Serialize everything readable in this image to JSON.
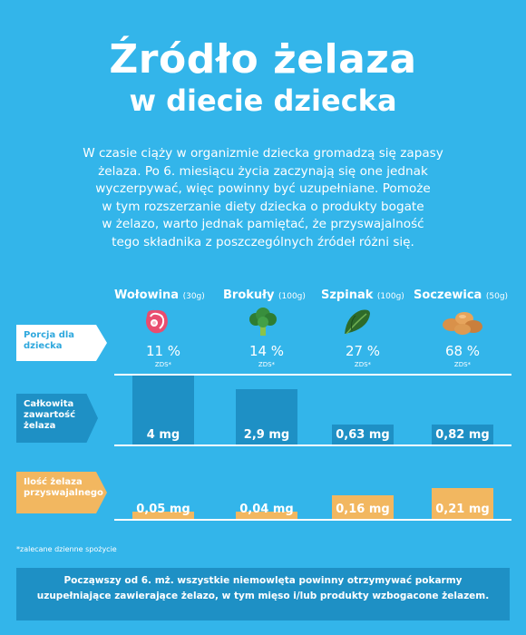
{
  "title_line1": "Źródło żelaza",
  "title_line2": "w diecie dziecka",
  "intro_lines": [
    "W czasie ciąży w organizmie dziecka gromadzą się zapasy",
    "żelaza. Po 6. miesiącu życia zaczynają się one jednak",
    "wyczerpywać, więc powinny być uzupełniane. Pomoże",
    "w tym rozszerzanie diety dziecka o produkty bogate",
    "w żelazo, warto jednak pamiętać, że przyswajalność",
    "tego składnika z poszczególnych źródeł różni się."
  ],
  "row_labels": {
    "portion_line1": "Porcja dla",
    "portion_line2": "dziecka",
    "total_line1": "Całkowita",
    "total_line2": "zawartość",
    "total_line3": "żelaza",
    "absorbed_line1": "Ilość żelaza",
    "absorbed_line2": "przyswajalnego"
  },
  "zds_label": "ZDS*",
  "footnote": "*zalecane dzienne spożycie",
  "bottom_line1": "Począwszy od 6. mż. wszystkie niemowlęta powinny otrzymywać pokarmy",
  "bottom_line2": "uzupełniające zawierające żelazo, w tym mięso i/lub produkty wzbogacone żelazem.",
  "colors": {
    "background": "#33b5ea",
    "blue_bar": "#1e90c5",
    "orange_bar": "#f2b760"
  },
  "chart_data": {
    "type": "bar",
    "categories": [
      "Wołowina",
      "Brokuły",
      "Szpinak",
      "Soczewica"
    ],
    "portions": [
      "(30g)",
      "(100g)",
      "(100g)",
      "(50g)"
    ],
    "icons": [
      "meat-icon",
      "broccoli-icon",
      "spinach-icon",
      "lentils-icon"
    ],
    "series": [
      {
        "name": "Porcja dla dziecka",
        "values": [
          11,
          14,
          27,
          68
        ],
        "labels": [
          "11 %",
          "14 %",
          "27 %",
          "68 %"
        ]
      },
      {
        "name": "Całkowita zawartość żelaza",
        "values": [
          4,
          2.9,
          0.63,
          0.82
        ],
        "labels": [
          "4 mg",
          "2,9 mg",
          "0,63 mg",
          "0,82 mg"
        ]
      },
      {
        "name": "Ilość żelaza przyswajalnego",
        "values": [
          0.05,
          0.04,
          0.16,
          0.21
        ],
        "labels": [
          "0,05 mg",
          "0,04 mg",
          "0,16 mg",
          "0,21 mg"
        ]
      }
    ]
  }
}
